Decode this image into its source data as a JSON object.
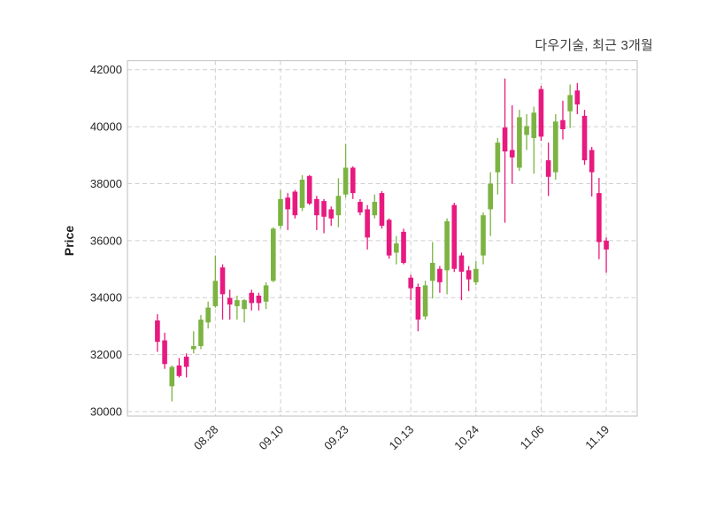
{
  "figure": {
    "title": "다우기술, 최근 3개월",
    "y_axis_label": "Price"
  },
  "chart_data": {
    "type": "candlestick",
    "title": "다우기술, 최근 3개월",
    "ylabel": "Price",
    "ylim": [
      29850,
      42350
    ],
    "y_ticks": [
      30000,
      32000,
      34000,
      36000,
      38000,
      40000,
      42000
    ],
    "x_tick_labels": [
      "08.28",
      "09.10",
      "09.23",
      "10.13",
      "10.24",
      "11.06",
      "11.19"
    ],
    "x_tick_indices": [
      8,
      17,
      26,
      35,
      44,
      53,
      62
    ],
    "grid": true,
    "legend": "none",
    "up_color": "#7CB342",
    "down_color": "#E8197F",
    "candles_format": [
      "open",
      "high",
      "low",
      "close"
    ],
    "candles": [
      [
        33200,
        33420,
        32100,
        32450
      ],
      [
        32500,
        32770,
        31500,
        31670
      ],
      [
        30890,
        31620,
        30360,
        31570
      ],
      [
        31620,
        31880,
        31200,
        31250
      ],
      [
        31930,
        32040,
        31200,
        31570
      ],
      [
        32190,
        32820,
        32040,
        32300
      ],
      [
        32300,
        33390,
        32190,
        33230
      ],
      [
        33130,
        33860,
        32920,
        33650
      ],
      [
        33700,
        35480,
        33650,
        34590
      ],
      [
        35060,
        35170,
        33230,
        34120
      ],
      [
        33990,
        34280,
        33230,
        33760
      ],
      [
        33700,
        34070,
        33230,
        33910
      ],
      [
        33600,
        33950,
        33130,
        33910
      ],
      [
        34170,
        34280,
        33550,
        33810
      ],
      [
        34070,
        34170,
        33550,
        33810
      ],
      [
        33860,
        34540,
        33600,
        34430
      ],
      [
        34590,
        36470,
        34540,
        36420
      ],
      [
        36520,
        37780,
        36420,
        37460
      ],
      [
        37510,
        37670,
        36370,
        37100
      ],
      [
        37720,
        37780,
        36780,
        36890
      ],
      [
        37150,
        38300,
        37040,
        38140
      ],
      [
        38270,
        38300,
        37250,
        37300
      ],
      [
        37460,
        37570,
        36370,
        36890
      ],
      [
        37390,
        37460,
        36260,
        36840
      ],
      [
        37100,
        37200,
        36520,
        36780
      ],
      [
        36890,
        38190,
        36470,
        37570
      ],
      [
        37620,
        39390,
        37510,
        38560
      ],
      [
        38560,
        38610,
        37460,
        37670
      ],
      [
        37360,
        37460,
        36890,
        36990
      ],
      [
        37100,
        37250,
        35690,
        36110
      ],
      [
        36890,
        37620,
        36780,
        37360
      ],
      [
        37670,
        37740,
        36420,
        36520
      ],
      [
        36730,
        36780,
        35370,
        35480
      ],
      [
        35580,
        36160,
        35170,
        35900
      ],
      [
        36310,
        36420,
        35170,
        35220
      ],
      [
        34700,
        34800,
        33910,
        34330
      ],
      [
        34380,
        34490,
        32820,
        33230
      ],
      [
        33340,
        34590,
        33230,
        34430
      ],
      [
        34590,
        35950,
        33970,
        35220
      ],
      [
        35010,
        35110,
        34170,
        34540
      ],
      [
        34960,
        36780,
        34120,
        36680
      ],
      [
        37250,
        37330,
        34900,
        35010
      ],
      [
        35480,
        35580,
        33910,
        34910
      ],
      [
        34960,
        35110,
        34230,
        34640
      ],
      [
        34540,
        35280,
        34440,
        35010
      ],
      [
        35480,
        36990,
        35170,
        36890
      ],
      [
        37100,
        38400,
        36160,
        38000
      ],
      [
        38400,
        39600,
        37620,
        39440
      ],
      [
        39970,
        41690,
        36630,
        39130
      ],
      [
        39180,
        40750,
        38000,
        38920
      ],
      [
        38560,
        40590,
        38450,
        40330
      ],
      [
        39710,
        40440,
        39180,
        40020
      ],
      [
        39600,
        40700,
        38350,
        40490
      ],
      [
        41320,
        41430,
        39500,
        39650
      ],
      [
        38820,
        39440,
        37570,
        38240
      ],
      [
        38400,
        40440,
        38140,
        40180
      ],
      [
        40230,
        40910,
        39550,
        39910
      ],
      [
        40540,
        41480,
        39950,
        41110
      ],
      [
        41270,
        41530,
        40440,
        40780
      ],
      [
        40380,
        40590,
        38660,
        38820
      ],
      [
        39180,
        39290,
        37550,
        38400
      ],
      [
        37670,
        38200,
        35350,
        35950
      ],
      [
        36000,
        36110,
        34880,
        35690
      ]
    ]
  }
}
